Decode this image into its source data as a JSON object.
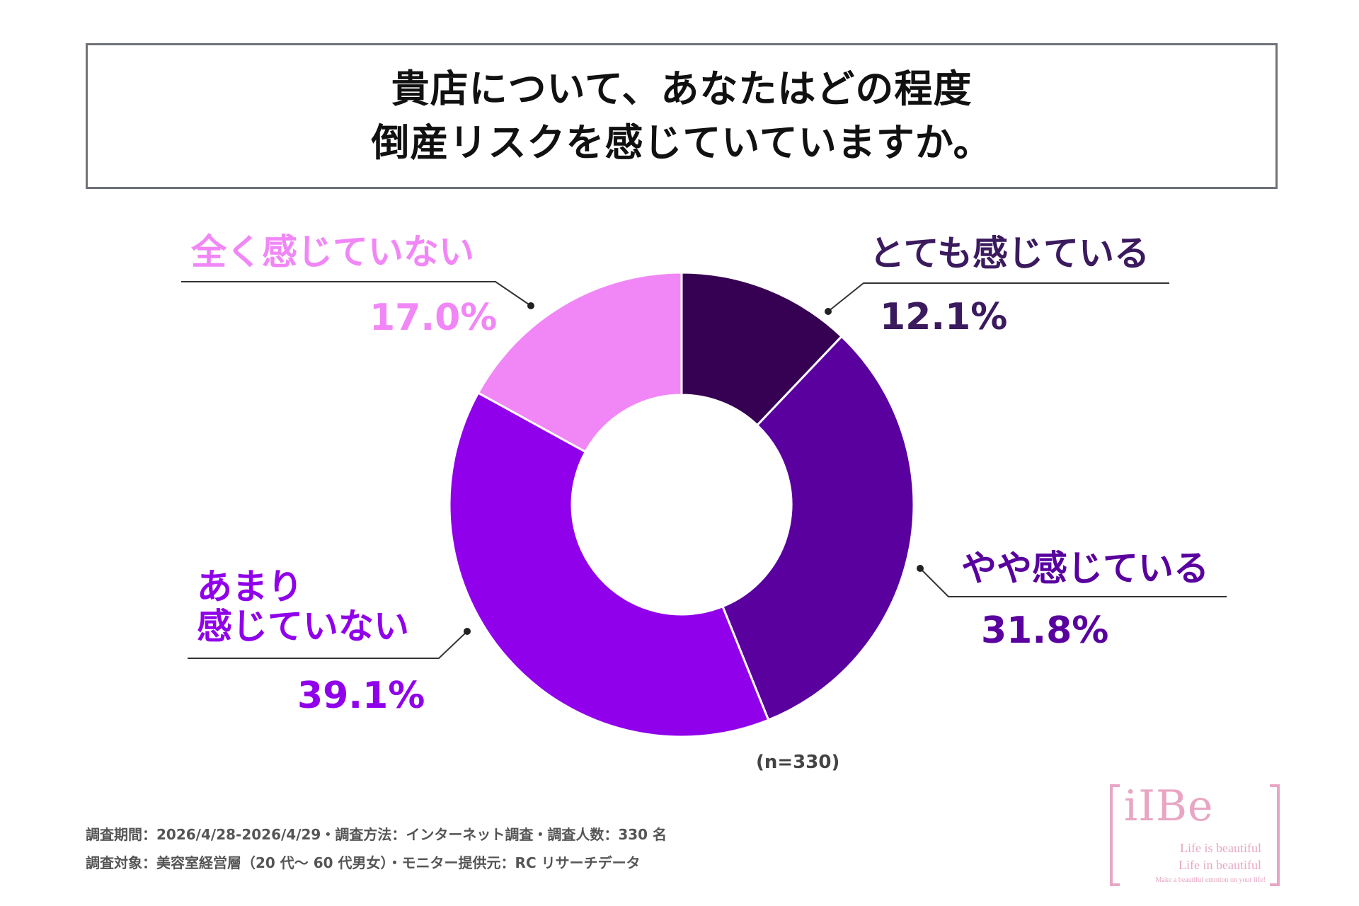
{
  "title": {
    "line1": "貴店について、あなたはどの程度",
    "line2": "倒産リスクを感じていていますか。"
  },
  "chart_data": {
    "type": "pie",
    "donut": true,
    "categories": [
      "とても感じている",
      "やや感じている",
      "あまり感じていない",
      "全く感じていない"
    ],
    "values": [
      12.1,
      31.8,
      39.1,
      17.0
    ],
    "value_labels": [
      "12.1%",
      "31.8%",
      "39.1%",
      "17.0%"
    ],
    "colors": [
      "#360053",
      "#59009f",
      "#9000ea",
      "#f187f6"
    ],
    "label_colors": [
      "#3b1a5e",
      "#59009f",
      "#9000ea",
      "#f187f6"
    ],
    "start": "12 o'clock, clockwise",
    "note": "(n=330)"
  },
  "labels": {
    "cat_0": "とても感じている",
    "cat_1": "やや感じている",
    "cat_2_line1": "あまり",
    "cat_2_line2": "感じていない",
    "cat_3": "全く感じていない"
  },
  "footer": {
    "line1": "調査期間：2026/4/28-2026/4/29・調査方法：インターネット調査・調査人数：330 名",
    "line2": "調査対象：美容室経営層（20 代〜 60 代男女）・モニター提供元：RC リサーチデータ"
  },
  "logo": {
    "brand": "iIBe",
    "tagline1": "Life is beautiful",
    "tagline2": "Life in beautiful",
    "tagline3": "Make a beautiful emotion on your life!"
  }
}
